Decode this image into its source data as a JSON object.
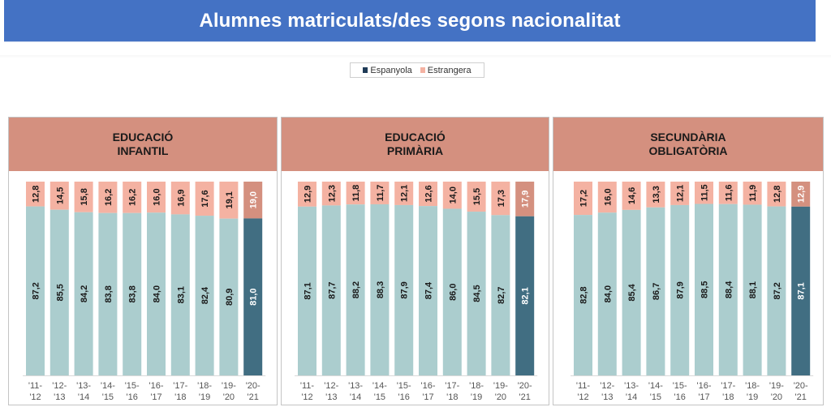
{
  "title": "Alumnes matriculats/des segons nacionalitat",
  "legend": [
    {
      "label": "Espanyola",
      "color": "#1F3B57"
    },
    {
      "label": "Estrangera",
      "color": "#F4B2A2"
    }
  ],
  "colors": {
    "banner": "#4472C4",
    "header": "#D4907F",
    "espanyola_past": "#ABCDCE",
    "estrangera_past": "#F4B2A2",
    "espanyola_current": "#416E82",
    "estrangera_current": "#D4907F"
  },
  "chart_data": [
    {
      "type": "bar",
      "stacked": true,
      "title": "EDUCACIÓ INFANTIL",
      "title_lines": [
        "EDUCACIÓ",
        "INFANTIL"
      ],
      "categories": [
        "'11-'12",
        "'12-'13",
        "'13-'14",
        "'14-'15",
        "'15-'16",
        "'16-'17",
        "'17-'18",
        "'18-'19",
        "'19-'20",
        "'20-'21"
      ],
      "category_lines": [
        [
          "'11-",
          "'12"
        ],
        [
          "'12-",
          "'13"
        ],
        [
          "'13-",
          "'14"
        ],
        [
          "'14-",
          "'15"
        ],
        [
          "'15-",
          "'16"
        ],
        [
          "'16-",
          "'17"
        ],
        [
          "'17-",
          "'18"
        ],
        [
          "'18-",
          "'19"
        ],
        [
          "'19-",
          "'20"
        ],
        [
          "'20-",
          "'21"
        ]
      ],
      "series": [
        {
          "name": "Espanyola",
          "values": [
            87.2,
            85.5,
            84.2,
            83.8,
            83.8,
            84.0,
            83.1,
            82.4,
            80.9,
            81.0
          ]
        },
        {
          "name": "Estrangera",
          "values": [
            12.8,
            14.5,
            15.8,
            16.2,
            16.2,
            16.0,
            16.9,
            17.6,
            19.1,
            19.0
          ]
        }
      ],
      "labels": {
        "Espanyola": [
          "87,2",
          "85,5",
          "84,2",
          "83,8",
          "83,8",
          "84,0",
          "83,1",
          "82,4",
          "80,9",
          "81,0"
        ],
        "Estrangera": [
          "12,8",
          "14,5",
          "15,8",
          "16,2",
          "16,2",
          "16,0",
          "16,9",
          "17,6",
          "19,1",
          "19,0"
        ]
      },
      "ylim": [
        0,
        100
      ],
      "xlabel": "",
      "ylabel": "",
      "grid": false,
      "legend_position": "top-center",
      "highlighted_category": "'20-'21"
    },
    {
      "type": "bar",
      "stacked": true,
      "title": "EDUCACIÓ PRIMÀRIA",
      "title_lines": [
        "EDUCACIÓ",
        "PRIMÀRIA"
      ],
      "categories": [
        "'11-'12",
        "'12-'13",
        "'13-'14",
        "'14-'15",
        "'15-'16",
        "'16-'17",
        "'17-'18",
        "'18-'19",
        "'19-'20",
        "'20-'21"
      ],
      "category_lines": [
        [
          "'11-",
          "'12"
        ],
        [
          "'12-",
          "'13"
        ],
        [
          "'13-",
          "'14"
        ],
        [
          "'14-",
          "'15"
        ],
        [
          "'15-",
          "'16"
        ],
        [
          "'16-",
          "'17"
        ],
        [
          "'17-",
          "'18"
        ],
        [
          "'18-",
          "'19"
        ],
        [
          "'19-",
          "'20"
        ],
        [
          "'20-",
          "'21"
        ]
      ],
      "series": [
        {
          "name": "Espanyola",
          "values": [
            87.1,
            87.7,
            88.2,
            88.3,
            87.9,
            87.4,
            86.0,
            84.5,
            82.7,
            82.1
          ]
        },
        {
          "name": "Estrangera",
          "values": [
            12.9,
            12.3,
            11.8,
            11.7,
            12.1,
            12.6,
            14.0,
            15.5,
            17.3,
            17.9
          ]
        }
      ],
      "labels": {
        "Espanyola": [
          "87,1",
          "87,7",
          "88,2",
          "88,3",
          "87,9",
          "87,4",
          "86,0",
          "84,5",
          "82,7",
          "82,1"
        ],
        "Estrangera": [
          "12,9",
          "12,3",
          "11,8",
          "11,7",
          "12,1",
          "12,6",
          "14,0",
          "15,5",
          "17,3",
          "17,9"
        ]
      },
      "ylim": [
        0,
        100
      ],
      "xlabel": "",
      "ylabel": "",
      "grid": false,
      "legend_position": "top-center",
      "highlighted_category": "'20-'21"
    },
    {
      "type": "bar",
      "stacked": true,
      "title": "SECUNDÀRIA OBLIGATÒRIA",
      "title_lines": [
        "SECUNDÀRIA",
        "OBLIGATÒRIA"
      ],
      "categories": [
        "'11-'12",
        "'12-'13",
        "'13-'14",
        "'14-'15",
        "'15-'16",
        "'16-'17",
        "'17-'18",
        "'18-'19",
        "'19-'20",
        "'20-'21"
      ],
      "category_lines": [
        [
          "'11-",
          "'12"
        ],
        [
          "'12-",
          "'13"
        ],
        [
          "'13-",
          "'14"
        ],
        [
          "'14-",
          "'15"
        ],
        [
          "'15-",
          "'16"
        ],
        [
          "'16-",
          "'17"
        ],
        [
          "'17-",
          "'18"
        ],
        [
          "'18-",
          "'19"
        ],
        [
          "'19-",
          "'20"
        ],
        [
          "'20-",
          "'21"
        ]
      ],
      "series": [
        {
          "name": "Espanyola",
          "values": [
            82.8,
            84.0,
            85.4,
            86.7,
            87.9,
            88.5,
            88.4,
            88.1,
            87.2,
            87.1
          ]
        },
        {
          "name": "Estrangera",
          "values": [
            17.2,
            16.0,
            14.6,
            13.3,
            12.1,
            11.5,
            11.6,
            11.9,
            12.8,
            12.9
          ]
        }
      ],
      "labels": {
        "Espanyola": [
          "82,8",
          "84,0",
          "85,4",
          "86,7",
          "87,9",
          "88,5",
          "88,4",
          "88,1",
          "87,2",
          "87,1"
        ],
        "Estrangera": [
          "17,2",
          "16,0",
          "14,6",
          "13,3",
          "12,1",
          "11,5",
          "11,6",
          "11,9",
          "12,8",
          "12,9"
        ]
      },
      "ylim": [
        0,
        100
      ],
      "xlabel": "",
      "ylabel": "",
      "grid": false,
      "legend_position": "top-center",
      "highlighted_category": "'20-'21"
    }
  ]
}
